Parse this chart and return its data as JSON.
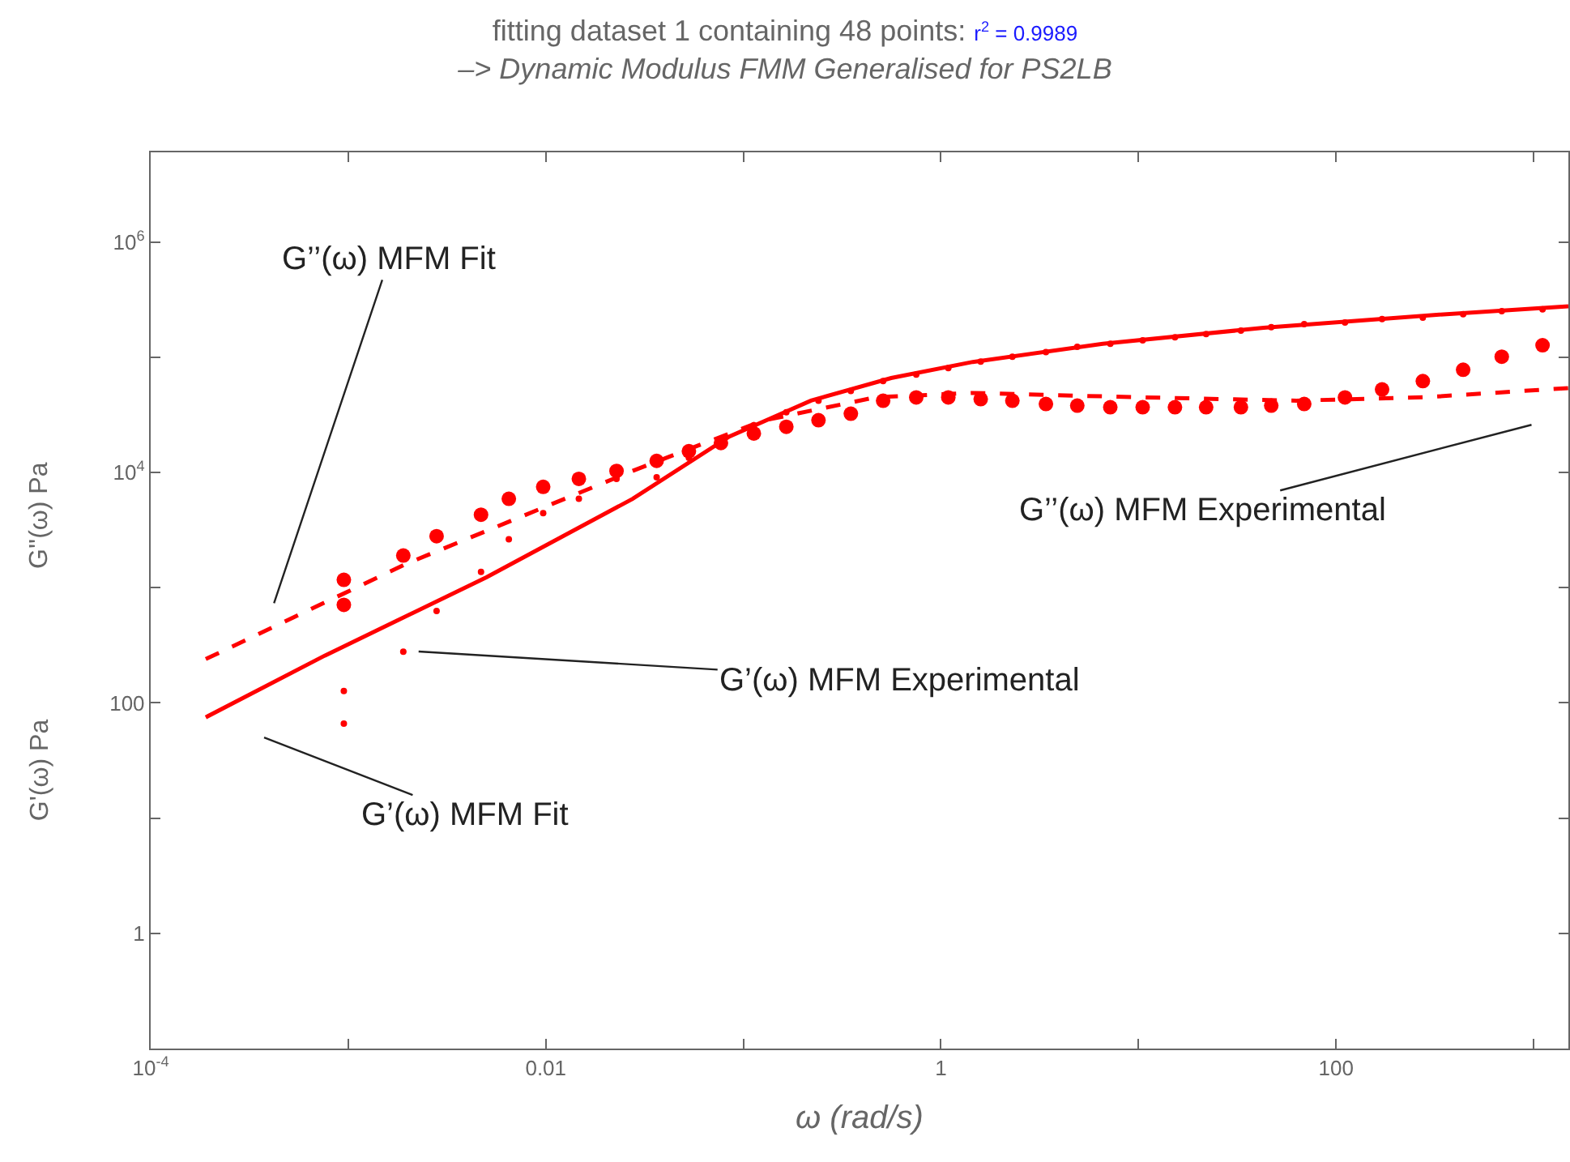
{
  "chart_data": {
    "type": "scatter",
    "title": "fitting dataset 1 containing 48 points: r$^{2}$ = 0.9989",
    "subtitle": "–> Dynamic Modulus FMM Generalised for PS2LB",
    "xlabel": "ω (rad/s)",
    "ylabel": "G'(ω) Pa",
    "log": "xy",
    "grid": false,
    "xlim": [
      0.0001,
      1500
    ],
    "ylim": [
      0.1,
      6000000
    ],
    "xticks": [
      {
        "value": 0.0001,
        "label": "10$^{-4}$"
      },
      {
        "value": 0.001,
        "label": null
      },
      0.01,
      {
        "value": 0.1,
        "label": null
      },
      1,
      {
        "value": 10,
        "label": null
      },
      100,
      {
        "value": 1000,
        "label": null
      }
    ],
    "yticks": [
      1,
      {
        "value": 10,
        "label": null
      },
      100,
      {
        "value": 1000,
        "label": null
      },
      {
        "value": 10000,
        "label": "10$^{4}$"
      },
      {
        "value": 100000,
        "label": null
      },
      {
        "value": 1000000,
        "label": "10$^{6}$"
      }
    ],
    "series": [
      {
        "type": "line",
        "line_style": "solid",
        "marker": "none",
        "color": "#ff0000",
        "x": [
          0.00019,
          0.00076,
          0.005,
          0.0275,
          0.085,
          0.22,
          0.56,
          1.45,
          6.6,
          43,
          285,
          1500
        ],
        "values": [
          75,
          257,
          1230,
          5900,
          20500,
          42000,
          66000,
          91000,
          131000,
          180000,
          230000,
          277000
        ]
      },
      {
        "type": "line",
        "line_style": "dashed",
        "marker": "none",
        "color": "#ff0000",
        "x": [
          0.00019,
          0.00195,
          0.0275,
          0.124,
          0.47,
          1.45,
          9.5,
          63,
          285,
          1500
        ],
        "values": [
          240,
          1600,
          10300,
          28000,
          45000,
          49000,
          45000,
          42000,
          45000,
          54000
        ]
      },
      {
        "type": "scatter",
        "marker": "circle",
        "color": "#ff0000",
        "x": [
          0.00095,
          0.00095,
          0.0019,
          0.0028,
          0.0047,
          0.0065,
          0.0097,
          0.0147,
          0.0228,
          0.0364,
          0.053,
          0.077,
          0.113,
          0.165,
          0.24,
          0.35,
          0.51,
          0.75,
          1.09,
          1.59,
          2.3,
          3.4,
          4.9,
          7.2,
          10.5,
          15.3,
          22,
          33,
          47,
          69,
          111,
          171,
          275,
          440,
          690,
          1110
        ],
        "values": [
          1170,
          710,
          1900,
          2800,
          4300,
          5900,
          7500,
          8800,
          10300,
          12600,
          15300,
          18000,
          21800,
          24900,
          28400,
          32300,
          41900,
          44800,
          44800,
          43300,
          41900,
          39300,
          38000,
          36800,
          36800,
          36800,
          36800,
          36800,
          38000,
          39300,
          44800,
          52600,
          62000,
          77800,
          101000,
          127000
        ]
      },
      {
        "type": "scatter",
        "marker": "circle",
        "color": "#ff0000",
        "x": [
          0.00095,
          0.00095,
          0.0019,
          0.0028,
          0.0047,
          0.0065,
          0.0097,
          0.0147,
          0.0228,
          0.0364,
          0.053,
          0.077,
          0.113,
          0.165,
          0.24,
          0.35,
          0.51,
          0.75,
          1.09,
          1.59,
          2.3,
          3.4,
          4.9,
          7.2,
          10.5,
          15.3,
          22,
          33,
          47,
          69,
          111,
          171,
          275,
          440,
          690,
          1110
        ],
        "values": [
          127,
          66,
          278,
          628,
          1370,
          2630,
          4430,
          5900,
          8800,
          9070,
          13400,
          null,
          25700,
          33300,
          41900,
          50900,
          62000,
          70600,
          80400,
          91600,
          101000,
          111000,
          123000,
          131000,
          140000,
          149000,
          159000,
          170000,
          182000,
          194000,
          200000,
          214000,
          221000,
          236000,
          251000,
          260000
        ]
      }
    ],
    "annotations": [
      "G''(ω) Pa",
      "G’’(ω) MFM Fit",
      "G’(ω) MFM Experimental",
      "G’(ω) MFM Fit",
      "G’’(ω) MFM Experimental"
    ]
  }
}
